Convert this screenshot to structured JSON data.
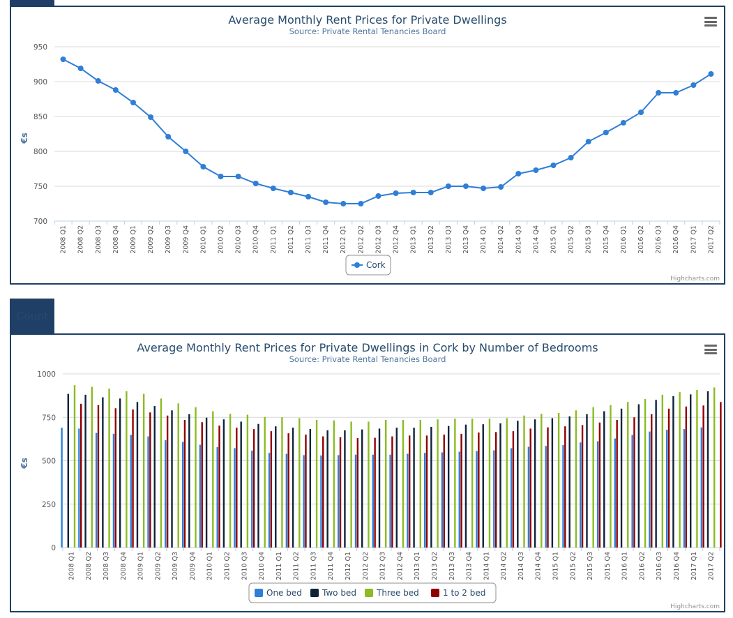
{
  "tab_label": "Count",
  "chart_data": [
    {
      "type": "line",
      "title": "Average Monthly Rent Prices for Private Dwellings",
      "subtitle": "Source: Private Rental Tenancies Board",
      "ylabel": "€s",
      "ylim": [
        700,
        950
      ],
      "yticks": [
        700,
        750,
        800,
        850,
        900,
        950
      ],
      "categories": [
        "2008 Q1",
        "2008 Q2",
        "2008 Q3",
        "2008 Q4",
        "2009 Q1",
        "2009 Q2",
        "2009 Q3",
        "2009 Q4",
        "2010 Q1",
        "2010 Q2",
        "2010 Q3",
        "2010 Q4",
        "2011 Q1",
        "2011 Q2",
        "2011 Q3",
        "2011 Q4",
        "2012 Q1",
        "2012 Q2",
        "2012 Q3",
        "2012 Q4",
        "2013 Q1",
        "2013 Q2",
        "2013 Q3",
        "2013 Q4",
        "2014 Q1",
        "2014 Q2",
        "2014 Q3",
        "2014 Q4",
        "2015 Q1",
        "2015 Q2",
        "2015 Q3",
        "2015 Q4",
        "2016 Q1",
        "2016 Q2",
        "2016 Q3",
        "2016 Q4",
        "2017 Q1",
        "2017 Q2"
      ],
      "series": [
        {
          "name": "Cork",
          "color": "#2f7ed8",
          "values": [
            932,
            919,
            901,
            888,
            870,
            849,
            821,
            800,
            778,
            764,
            764,
            754,
            747,
            741,
            735,
            727,
            725,
            725,
            736,
            740,
            741,
            741,
            750,
            750,
            747,
            749,
            768,
            773,
            780,
            791,
            814,
            827,
            841,
            856,
            884,
            884,
            895,
            911
          ]
        }
      ],
      "legend_position": "bottom-center",
      "credit": "Highcharts.com",
      "grid": true
    },
    {
      "type": "bar",
      "title": "Average Monthly Rent Prices for Private Dwellings in Cork by Number of Bedrooms",
      "subtitle": "Source: Private Rental Tenancies Board",
      "ylabel": "€s",
      "ylim": [
        0,
        1000
      ],
      "yticks": [
        0,
        250,
        500,
        750,
        1000
      ],
      "categories": [
        "2008 Q1",
        "2008 Q2",
        "2008 Q3",
        "2008 Q4",
        "2009 Q1",
        "2009 Q2",
        "2009 Q3",
        "2009 Q4",
        "2010 Q1",
        "2010 Q2",
        "2010 Q3",
        "2010 Q4",
        "2011 Q1",
        "2011 Q2",
        "2011 Q3",
        "2011 Q4",
        "2012 Q1",
        "2012 Q2",
        "2012 Q3",
        "2012 Q4",
        "2013 Q1",
        "2013 Q2",
        "2013 Q3",
        "2013 Q4",
        "2014 Q1",
        "2014 Q2",
        "2014 Q3",
        "2014 Q4",
        "2015 Q1",
        "2015 Q2",
        "2015 Q3",
        "2015 Q4",
        "2016 Q1",
        "2016 Q2",
        "2016 Q3",
        "2016 Q4",
        "2017 Q1",
        "2017 Q2"
      ],
      "series": [
        {
          "name": "One bed",
          "color": "#2f7ed8",
          "values": [
            690,
            685,
            660,
            655,
            648,
            640,
            618,
            608,
            592,
            578,
            572,
            558,
            545,
            540,
            532,
            530,
            532,
            535,
            535,
            535,
            540,
            545,
            548,
            552,
            555,
            560,
            572,
            580,
            585,
            590,
            605,
            612,
            628,
            648,
            668,
            678,
            682,
            692
          ]
        },
        {
          "name": "Two bed",
          "color": "#0d233a",
          "values": [
            885,
            880,
            865,
            858,
            838,
            815,
            790,
            768,
            748,
            738,
            725,
            712,
            698,
            690,
            683,
            675,
            675,
            680,
            685,
            690,
            690,
            695,
            700,
            708,
            710,
            715,
            730,
            738,
            745,
            755,
            768,
            785,
            800,
            825,
            850,
            872,
            882,
            900
          ]
        },
        {
          "name": "Three bed",
          "color": "#8bbc21",
          "values": [
            935,
            925,
            915,
            900,
            885,
            858,
            830,
            808,
            785,
            770,
            765,
            752,
            750,
            745,
            735,
            732,
            725,
            725,
            735,
            735,
            735,
            738,
            742,
            742,
            742,
            745,
            760,
            770,
            775,
            790,
            808,
            820,
            838,
            855,
            880,
            895,
            908,
            922
          ]
        },
        {
          "name": "1 to 2 bed",
          "color": "#910000",
          "values": [
            828,
            820,
            802,
            795,
            778,
            760,
            735,
            722,
            702,
            690,
            682,
            670,
            658,
            650,
            640,
            635,
            630,
            632,
            640,
            645,
            645,
            650,
            655,
            662,
            665,
            670,
            685,
            692,
            698,
            705,
            720,
            735,
            750,
            768,
            800,
            812,
            818,
            838
          ]
        }
      ],
      "legend_position": "bottom-center",
      "credit": "Highcharts.com",
      "grid": true
    }
  ]
}
